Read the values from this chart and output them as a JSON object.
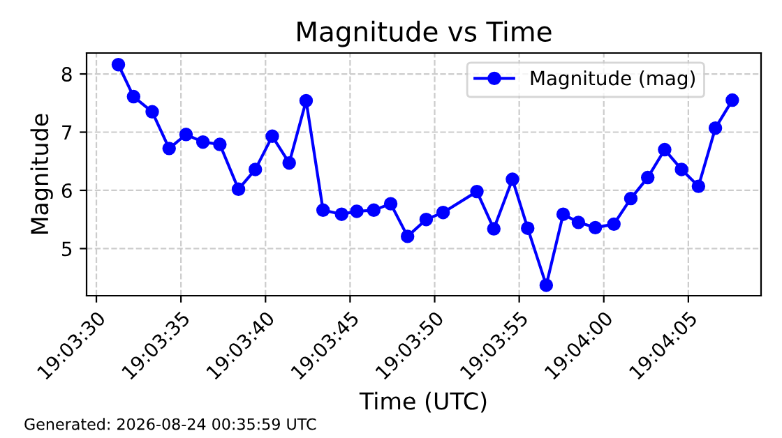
{
  "chart_data": {
    "type": "line",
    "title": "Magnitude vs Time",
    "xlabel": "Time (UTC)",
    "ylabel": "Magnitude",
    "annotations": [
      "Generated: 2026-08-24 00:35:59 UTC"
    ],
    "x": [
      19.058694,
      19.058944,
      19.05925,
      19.059528,
      19.059806,
      19.060083,
      19.060361,
      19.060667,
      19.060944,
      19.061222,
      19.0615,
      19.061778,
      19.062056,
      19.062361,
      19.062611,
      19.062889,
      19.063167,
      19.063444,
      19.06375,
      19.064028,
      19.064583,
      19.064861,
      19.065167,
      19.065417,
      19.065722,
      19.066,
      19.06625,
      19.066528,
      19.066833,
      19.067111,
      19.067389,
      19.067667,
      19.067944,
      19.068222,
      19.0685,
      19.068778
    ],
    "series": [
      {
        "name": "Magnitude (mag)",
        "color": "#0000ff",
        "values": [
          8.16,
          7.61,
          7.35,
          6.72,
          6.96,
          6.83,
          6.79,
          6.02,
          6.36,
          6.93,
          6.47,
          7.54,
          5.66,
          5.59,
          5.64,
          5.66,
          5.77,
          5.21,
          5.5,
          5.62,
          5.98,
          5.34,
          6.19,
          5.35,
          4.37,
          5.59,
          5.45,
          5.36,
          5.42,
          5.86,
          6.22,
          6.7,
          6.36,
          6.07,
          7.07,
          7.55
        ]
      }
    ],
    "xlim": [
      19.058172,
      19.06925
    ],
    "xticks": [
      {
        "value": 19.058333,
        "label": "19:03:30"
      },
      {
        "value": 19.059722,
        "label": "19:03:35"
      },
      {
        "value": 19.061111,
        "label": "19:03:40"
      },
      {
        "value": 19.0625,
        "label": "19:03:45"
      },
      {
        "value": 19.063889,
        "label": "19:03:50"
      },
      {
        "value": 19.065278,
        "label": "19:03:55"
      },
      {
        "value": 19.066667,
        "label": "19:04:00"
      },
      {
        "value": 19.068056,
        "label": "19:04:05"
      }
    ],
    "ylim": [
      4.19,
      8.36
    ],
    "yticks": [
      5,
      6,
      7,
      8
    ],
    "grid": true,
    "legend": "top right",
    "marker": "circle",
    "line_style": "solid"
  }
}
